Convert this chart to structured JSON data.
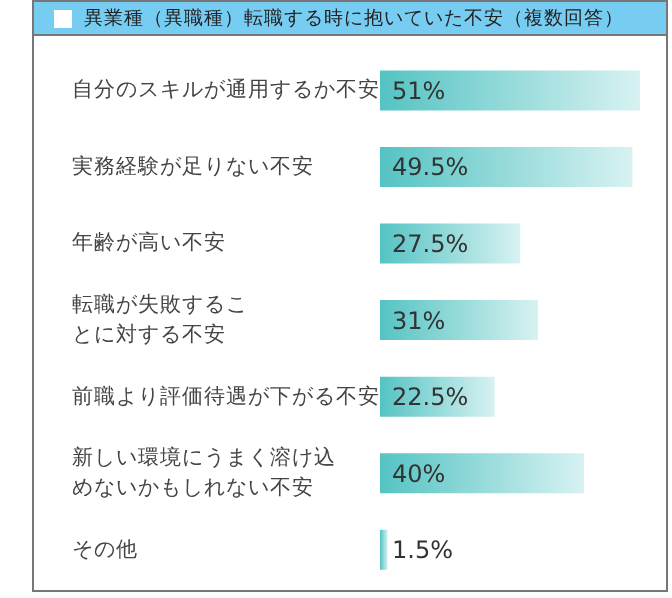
{
  "chart_data": {
    "type": "bar",
    "orientation": "horizontal",
    "title": "異業種（異職種）転職する時に抱いていた不安（複数回答）",
    "categories": [
      "自分のスキルが通用するか不安",
      "実務経験が足りない不安",
      "年齢が高い不安",
      "転職が失敗することに対する不安",
      "前職より評価待遇が下がる不安",
      "新しい環境にうまく溶け込めないかもしれない不安",
      "その他"
    ],
    "values": [
      51,
      49.5,
      27.5,
      31,
      22.5,
      40,
      1.5
    ],
    "value_labels": [
      "51%",
      "49.5%",
      "27.5%",
      "31%",
      "22.5%",
      "40%",
      "1.5%"
    ],
    "color": "#55c3c3"
  }
}
